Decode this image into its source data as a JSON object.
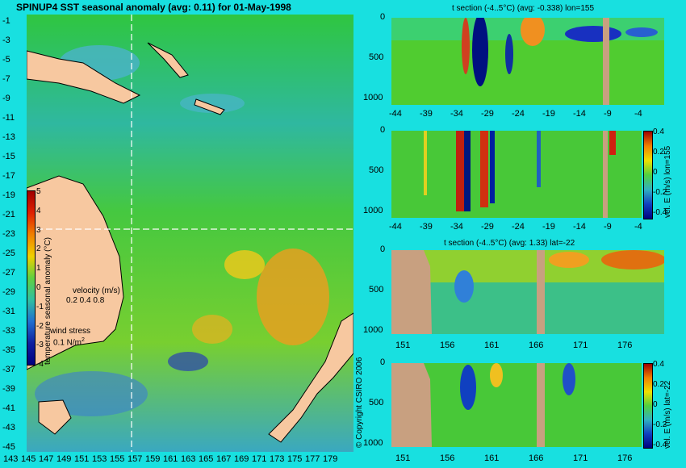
{
  "map": {
    "title": "SPINUP4 SST seasonal anomaly (avg: 0.11) for 01-May-1998",
    "lat_labels": [
      "-1",
      "-3",
      "-5",
      "-7",
      "-9",
      "-11",
      "-13",
      "-15",
      "-17",
      "-19",
      "-21",
      "-23",
      "-25",
      "-27",
      "-29",
      "-31",
      "-33",
      "-35",
      "-37",
      "-39",
      "-41",
      "-43",
      "-45"
    ],
    "lon_labels": [
      "143",
      "145",
      "147",
      "149",
      "151",
      "153",
      "155",
      "157",
      "159",
      "161",
      "163",
      "165",
      "167",
      "169",
      "171",
      "173",
      "175",
      "177",
      "179"
    ],
    "colorbar_title": "temperature seasonal anomaly (°C)",
    "colorbar_ticks": [
      "5",
      "4",
      "3",
      "2",
      "1",
      "0",
      "-1",
      "-2",
      "-3",
      "-4"
    ],
    "velocity_label": "velocity (m/s)",
    "velocity_scale": "0.2 0.4 0.8",
    "wind_label": "wind stress",
    "wind_scale": "0.1 N/m",
    "wind_scale_sup": "2",
    "colors": {
      "land": "#f7c8a0",
      "ocean_base": "#4ccc3c",
      "cool": "#3aa0d0",
      "warm": "#e8a020"
    }
  },
  "panels": {
    "p1_title": "t section (-4..5°C) (avg: -0.338) lon=155",
    "p3_title": "t section (-4..5°C) (avg: 1.33) lat=-22",
    "p2_side_label": "vel. E (m/s) lon=155",
    "p4_side_label": "vel. E (m/s) lat=-22",
    "depth_ticks": [
      "0",
      "500",
      "1000"
    ],
    "lat_ticks": [
      "-44",
      "-39",
      "-34",
      "-29",
      "-24",
      "-19",
      "-14",
      "-9",
      "-4"
    ],
    "lon_ticks": [
      "151",
      "156",
      "161",
      "166",
      "171",
      "176"
    ],
    "vel_cb_ticks": [
      "0.4",
      "0.2",
      "0",
      "-0.2",
      "-0.4"
    ],
    "copyright": "© Copyright CSIRO 2006"
  },
  "chart_data": [
    {
      "type": "heatmap",
      "title": "SPINUP4 SST seasonal anomaly (avg: 0.11) for 01-May-1998",
      "x_range": [
        143,
        180
      ],
      "y_range": [
        -45,
        0
      ],
      "value_range": [
        -4,
        5
      ],
      "colorbar_label": "temperature seasonal anomaly (°C)"
    },
    {
      "type": "heatmap",
      "title": "t section (-4..5°C) (avg: -0.338) lon=155",
      "x_range": [
        -45,
        -1
      ],
      "y_range": [
        1050,
        0
      ]
    },
    {
      "type": "heatmap",
      "title": "",
      "x_range": [
        -45,
        -1
      ],
      "y_range": [
        1050,
        0
      ],
      "colorbar_label": "vel. E (m/s) lon=155",
      "value_range": [
        -0.4,
        0.4
      ]
    },
    {
      "type": "heatmap",
      "title": "t section (-4..5°C) (avg: 1.33) lat=-22",
      "x_range": [
        150,
        180
      ],
      "y_range": [
        1050,
        0
      ]
    },
    {
      "type": "heatmap",
      "title": "",
      "x_range": [
        150,
        180
      ],
      "y_range": [
        1050,
        0
      ],
      "colorbar_label": "vel. E (m/s) lat=-22",
      "value_range": [
        -0.4,
        0.4
      ]
    }
  ]
}
